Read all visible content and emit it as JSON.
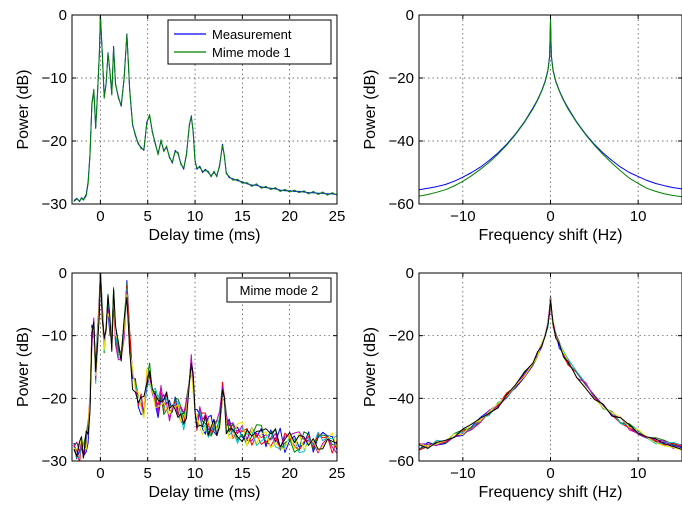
{
  "chart_data": [
    {
      "type": "line",
      "xlabel": "Delay time (ms)",
      "ylabel": "Power (dB)",
      "xlim": [
        -3,
        25
      ],
      "ylim": [
        -30,
        0
      ],
      "xticks": [
        0,
        5,
        10,
        15,
        20,
        25
      ],
      "yticks": [
        0,
        -10,
        -20,
        -30
      ],
      "grid": true,
      "legend": {
        "placement": "top-right",
        "entries": [
          "Measurement",
          "Mime mode 1"
        ]
      },
      "series": [
        {
          "name": "Measurement",
          "color": "#0000ff",
          "x": [
            -2.8,
            -2.5,
            -2.2,
            -2.0,
            -1.8,
            -1.5,
            -1.3,
            -1.1,
            -0.9,
            -0.7,
            -0.5,
            -0.3,
            -0.1,
            0.0,
            0.2,
            0.4,
            0.6,
            0.8,
            1.0,
            1.2,
            1.4,
            1.6,
            1.9,
            2.2,
            2.5,
            2.8,
            3.1,
            3.4,
            3.7,
            4.0,
            4.3,
            4.6,
            4.9,
            5.2,
            5.5,
            5.8,
            6.1,
            6.4,
            6.7,
            7.0,
            7.3,
            7.6,
            7.9,
            8.2,
            8.5,
            8.8,
            9.1,
            9.4,
            9.6,
            9.8,
            10.0,
            10.2,
            10.5,
            10.8,
            11.1,
            11.4,
            11.7,
            12.0,
            12.3,
            12.6,
            12.9,
            13.1,
            13.3,
            13.6,
            14.0,
            14.5,
            15.0,
            15.5,
            16.0,
            16.5,
            17.0,
            17.5,
            18.0,
            18.5,
            19.0,
            19.5,
            20.0,
            20.5,
            21.0,
            21.5,
            22.0,
            22.5,
            23.0,
            23.5,
            24.0,
            24.5,
            25.0
          ],
          "y": [
            -29.5,
            -29.1,
            -29.6,
            -29.0,
            -29.3,
            -28.5,
            -26.5,
            -22.0,
            -14.0,
            -12.0,
            -18.0,
            -12.0,
            -6.0,
            0.0,
            -6.0,
            -13.0,
            -11.0,
            -6.0,
            -9.0,
            -12.5,
            -5.0,
            -11.0,
            -13.0,
            -14.5,
            -10.0,
            -3.0,
            -12.0,
            -17.5,
            -19.0,
            -20.5,
            -21.0,
            -21.5,
            -17.0,
            -16.0,
            -18.5,
            -20.5,
            -22.0,
            -20.0,
            -21.5,
            -21.0,
            -22.5,
            -23.5,
            -21.5,
            -22.0,
            -23.5,
            -24.5,
            -22.0,
            -17.5,
            -16.0,
            -18.5,
            -23.0,
            -24.5,
            -24.0,
            -25.0,
            -24.5,
            -25.0,
            -25.5,
            -25.0,
            -25.5,
            -24.0,
            -20.5,
            -22.5,
            -25.0,
            -25.8,
            -26.0,
            -26.3,
            -26.5,
            -26.8,
            -27.0,
            -27.0,
            -27.3,
            -27.4,
            -27.5,
            -27.6,
            -27.8,
            -27.9,
            -27.9,
            -28.0,
            -28.0,
            -28.1,
            -28.2,
            -28.2,
            -28.3,
            -28.3,
            -28.4,
            -28.4,
            -28.5
          ]
        },
        {
          "name": "Mime mode 1",
          "color": "#008000",
          "x": [
            -2.8,
            -2.5,
            -2.2,
            -2.0,
            -1.8,
            -1.5,
            -1.3,
            -1.1,
            -0.9,
            -0.7,
            -0.5,
            -0.3,
            -0.1,
            0.0,
            0.2,
            0.4,
            0.6,
            0.8,
            1.0,
            1.2,
            1.4,
            1.6,
            1.9,
            2.2,
            2.5,
            2.8,
            3.1,
            3.4,
            3.7,
            4.0,
            4.3,
            4.6,
            4.9,
            5.2,
            5.5,
            5.8,
            6.1,
            6.4,
            6.7,
            7.0,
            7.3,
            7.6,
            7.9,
            8.2,
            8.5,
            8.8,
            9.1,
            9.4,
            9.6,
            9.8,
            10.0,
            10.2,
            10.5,
            10.8,
            11.1,
            11.4,
            11.7,
            12.0,
            12.3,
            12.6,
            12.9,
            13.1,
            13.3,
            13.6,
            14.0,
            14.5,
            15.0,
            15.5,
            16.0,
            16.5,
            17.0,
            17.5,
            18.0,
            18.5,
            19.0,
            19.5,
            20.0,
            20.5,
            21.0,
            21.5,
            22.0,
            22.5,
            23.0,
            23.5,
            24.0,
            24.5,
            25.0
          ],
          "y": [
            -29.6,
            -29.2,
            -29.5,
            -29.1,
            -29.4,
            -28.7,
            -26.8,
            -22.3,
            -14.3,
            -11.8,
            -17.8,
            -12.3,
            -5.8,
            0.0,
            -6.3,
            -13.2,
            -10.8,
            -6.2,
            -8.8,
            -12.7,
            -5.2,
            -10.8,
            -13.2,
            -14.3,
            -10.2,
            -3.1,
            -11.8,
            -17.3,
            -19.2,
            -20.3,
            -21.2,
            -21.3,
            -17.2,
            -15.8,
            -18.7,
            -20.3,
            -22.2,
            -19.8,
            -21.7,
            -20.8,
            -22.7,
            -23.3,
            -21.7,
            -21.8,
            -23.7,
            -24.3,
            -22.2,
            -17.3,
            -16.2,
            -18.3,
            -23.2,
            -24.3,
            -24.2,
            -24.8,
            -24.7,
            -24.8,
            -25.7,
            -24.8,
            -25.7,
            -23.8,
            -20.7,
            -22.3,
            -25.2,
            -25.6,
            -26.2,
            -26.1,
            -26.7,
            -26.6,
            -27.2,
            -26.8,
            -27.5,
            -27.2,
            -27.7,
            -27.4,
            -28.0,
            -27.7,
            -28.1,
            -27.8,
            -28.2,
            -27.9,
            -28.4,
            -28.0,
            -28.5,
            -28.1,
            -28.6,
            -28.2,
            -28.6
          ]
        }
      ]
    },
    {
      "type": "line",
      "xlabel": "Frequency shift (Hz)",
      "ylabel": "Power (dB)",
      "xlim": [
        -15,
        15
      ],
      "ylim": [
        -60,
        0
      ],
      "xticks": [
        -10,
        0,
        10
      ],
      "yticks": [
        0,
        -20,
        -40,
        -60
      ],
      "grid": true,
      "series": [
        {
          "name": "Measurement",
          "color": "#0000ff",
          "x": [
            -15,
            -14,
            -13,
            -12,
            -11,
            -10,
            -9,
            -8,
            -7,
            -6,
            -5,
            -4,
            -3,
            -2,
            -1.5,
            -1,
            -0.6,
            -0.3,
            -0.1,
            0,
            0.1,
            0.3,
            0.6,
            1,
            1.5,
            2,
            3,
            4,
            5,
            6,
            7,
            8,
            9,
            10,
            11,
            12,
            13,
            14,
            15
          ],
          "y": [
            -55.5,
            -55.0,
            -54.5,
            -53.8,
            -52.8,
            -51.5,
            -50.0,
            -48.3,
            -46.2,
            -43.8,
            -41.0,
            -37.8,
            -34.0,
            -29.5,
            -27.0,
            -24.0,
            -21.0,
            -17.5,
            -13.0,
            -2.0,
            -13.0,
            -17.5,
            -21.0,
            -24.0,
            -27.0,
            -29.5,
            -34.0,
            -37.8,
            -41.0,
            -43.8,
            -46.2,
            -48.3,
            -50.0,
            -51.3,
            -52.5,
            -53.5,
            -54.2,
            -54.8,
            -55.2
          ]
        },
        {
          "name": "Mime mode 1",
          "color": "#008000",
          "x": [
            -15,
            -14,
            -13,
            -12,
            -11,
            -10,
            -9,
            -8,
            -7,
            -6,
            -5,
            -4,
            -3,
            -2,
            -1.5,
            -1,
            -0.6,
            -0.3,
            -0.1,
            0,
            0.1,
            0.3,
            0.6,
            1,
            1.5,
            2,
            3,
            4,
            5,
            6,
            7,
            8,
            9,
            10,
            11,
            12,
            13,
            14,
            15
          ],
          "y": [
            -57.5,
            -57.0,
            -56.3,
            -55.5,
            -54.3,
            -52.8,
            -51.0,
            -49.0,
            -46.8,
            -44.2,
            -41.3,
            -38.0,
            -34.2,
            -29.8,
            -27.2,
            -24.2,
            -21.2,
            -17.8,
            -13.5,
            -1.0,
            -13.5,
            -17.8,
            -21.2,
            -24.2,
            -27.2,
            -29.8,
            -34.2,
            -38.0,
            -41.3,
            -44.3,
            -47.0,
            -49.5,
            -51.8,
            -53.5,
            -55.0,
            -56.0,
            -56.8,
            -57.3,
            -57.7
          ]
        }
      ]
    },
    {
      "type": "line",
      "xlabel": "Delay time (ms)",
      "ylabel": "Power (dB)",
      "xlim": [
        -3,
        25
      ],
      "ylim": [
        -30,
        0
      ],
      "xticks": [
        0,
        5,
        10,
        15,
        20,
        25
      ],
      "yticks": [
        0,
        -10,
        -20,
        -30
      ],
      "grid": true,
      "legend": {
        "placement": "top-right",
        "entries": [
          "Mime mode 2"
        ]
      },
      "series": [
        {
          "color": "#0000ff"
        },
        {
          "color": "#008000"
        },
        {
          "color": "#ff0000"
        },
        {
          "color": "#00bfbf"
        },
        {
          "color": "#bf00bf"
        },
        {
          "color": "#e6e600"
        },
        {
          "color": "#000000"
        }
      ],
      "base": {
        "x": [
          -2.8,
          -2.5,
          -2.2,
          -2.0,
          -1.8,
          -1.5,
          -1.3,
          -1.1,
          -0.9,
          -0.7,
          -0.5,
          -0.3,
          -0.1,
          0.0,
          0.2,
          0.4,
          0.6,
          0.8,
          1.0,
          1.2,
          1.4,
          1.6,
          1.9,
          2.2,
          2.5,
          2.8,
          3.1,
          3.4,
          3.7,
          4.0,
          4.3,
          4.6,
          4.9,
          5.2,
          5.5,
          5.8,
          6.1,
          6.4,
          6.7,
          7.0,
          7.3,
          7.6,
          7.9,
          8.2,
          8.5,
          8.8,
          9.1,
          9.4,
          9.6,
          9.8,
          10.0,
          10.2,
          10.5,
          10.8,
          11.1,
          11.4,
          11.7,
          12.0,
          12.3,
          12.6,
          12.9,
          13.1,
          13.3,
          13.6,
          14.0,
          14.5,
          15.0,
          15.5,
          16.0,
          16.5,
          17.0,
          17.5,
          18.0,
          18.5,
          19.0,
          19.5,
          20.0,
          20.5,
          21.0,
          21.5,
          22.0,
          22.5,
          23.0,
          23.5,
          24.0,
          24.5,
          25.0
        ],
        "y": [
          -28.5,
          -28.0,
          -28.5,
          -27.5,
          -28.0,
          -27.0,
          -25.5,
          -20.5,
          -10.0,
          -8.5,
          -16.0,
          -10.0,
          -5.0,
          -1.0,
          -6.0,
          -12.0,
          -10.0,
          -5.0,
          -8.0,
          -11.5,
          -4.0,
          -10.0,
          -12.5,
          -14.0,
          -9.0,
          -2.5,
          -11.0,
          -17.0,
          -18.5,
          -20.0,
          -21.0,
          -21.5,
          -17.0,
          -16.0,
          -18.5,
          -20.0,
          -21.5,
          -19.5,
          -21.0,
          -20.5,
          -22.0,
          -22.5,
          -21.0,
          -21.5,
          -23.0,
          -23.5,
          -21.5,
          -17.0,
          -14.5,
          -17.5,
          -22.0,
          -23.5,
          -23.0,
          -24.0,
          -24.0,
          -24.5,
          -24.5,
          -24.5,
          -25.0,
          -23.5,
          -19.0,
          -21.5,
          -24.0,
          -25.0,
          -25.5,
          -25.5,
          -25.5,
          -26.0,
          -26.0,
          -26.0,
          -26.0,
          -26.5,
          -26.5,
          -26.5,
          -26.5,
          -27.0,
          -26.5,
          -27.0,
          -27.0,
          -27.0,
          -27.0,
          -27.0,
          -27.0,
          -27.0,
          -27.0,
          -27.0,
          -27.0
        ]
      }
    },
    {
      "type": "line",
      "xlabel": "Frequency shift (Hz)",
      "ylabel": "Power (dB)",
      "xlim": [
        -15,
        15
      ],
      "ylim": [
        -60,
        0
      ],
      "xticks": [
        -10,
        0,
        10
      ],
      "yticks": [
        0,
        -20,
        -40,
        -60
      ],
      "grid": true,
      "series": [
        {
          "color": "#0000ff"
        },
        {
          "color": "#008000"
        },
        {
          "color": "#ff0000"
        },
        {
          "color": "#00bfbf"
        },
        {
          "color": "#bf00bf"
        },
        {
          "color": "#e6e600"
        },
        {
          "color": "#000000"
        }
      ],
      "base": {
        "x": [
          -15,
          -14,
          -13,
          -12,
          -11,
          -10,
          -9,
          -8,
          -7,
          -6,
          -5,
          -4,
          -3,
          -2,
          -1.5,
          -1,
          -0.6,
          -0.3,
          -0.1,
          0,
          0.1,
          0.3,
          0.6,
          1,
          1.5,
          2,
          3,
          4,
          5,
          6,
          7,
          8,
          9,
          10,
          11,
          12,
          13,
          14,
          15
        ],
        "y": [
          -55.5,
          -55.0,
          -54.3,
          -53.5,
          -52.3,
          -50.8,
          -49.0,
          -47.0,
          -44.8,
          -42.2,
          -39.3,
          -36.0,
          -32.5,
          -28.5,
          -26.0,
          -23.0,
          -20.0,
          -16.5,
          -12.0,
          -8.0,
          -12.0,
          -16.5,
          -20.0,
          -23.0,
          -26.0,
          -28.5,
          -32.5,
          -36.0,
          -39.3,
          -42.2,
          -44.8,
          -47.0,
          -49.0,
          -50.8,
          -52.3,
          -53.5,
          -54.3,
          -55.0,
          -55.5
        ]
      }
    }
  ]
}
